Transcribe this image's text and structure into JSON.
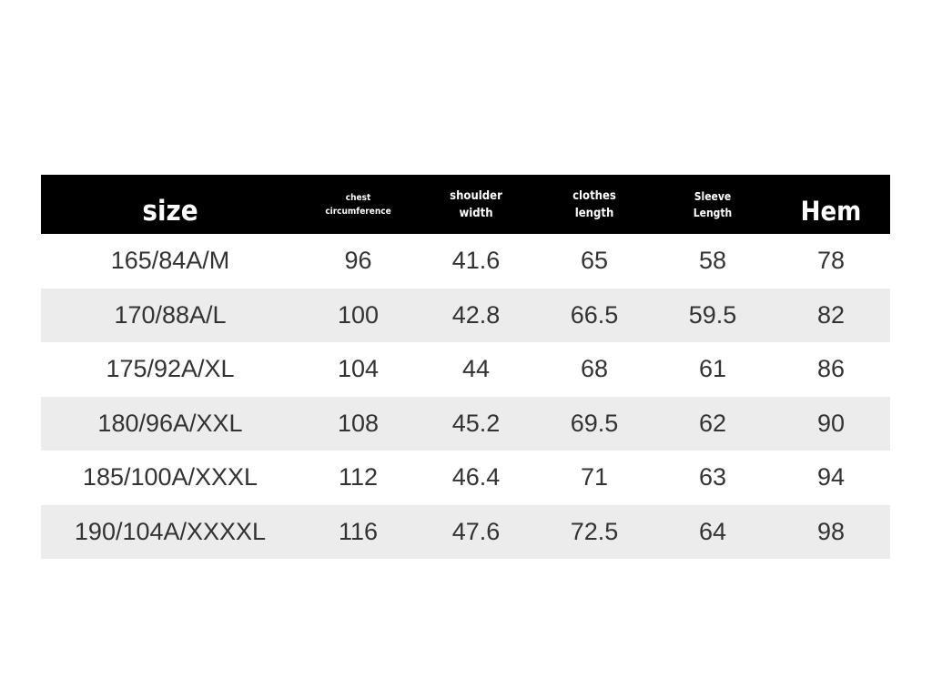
{
  "table": {
    "header": [
      "size",
      "chest circumference",
      "shoulder width",
      "clothes length",
      "Sleeve Length",
      "Hem"
    ],
    "rows": [
      [
        "165/84A/M",
        "96",
        "41.6",
        "65",
        "58",
        "78"
      ],
      [
        "170/88A/L",
        "100",
        "42.8",
        "66.5",
        "59.5",
        "82"
      ],
      [
        "175/92A/XL",
        "104",
        "44",
        "68",
        "61",
        "86"
      ],
      [
        "180/96A/XXL",
        "108",
        "45.2",
        "69.5",
        "62",
        "90"
      ],
      [
        "185/100A/XXXL",
        "112",
        "46.4",
        "71",
        "63",
        "94"
      ],
      [
        "190/104A/XXXXL",
        "116",
        "47.6",
        "72.5",
        "64",
        "98"
      ]
    ]
  }
}
